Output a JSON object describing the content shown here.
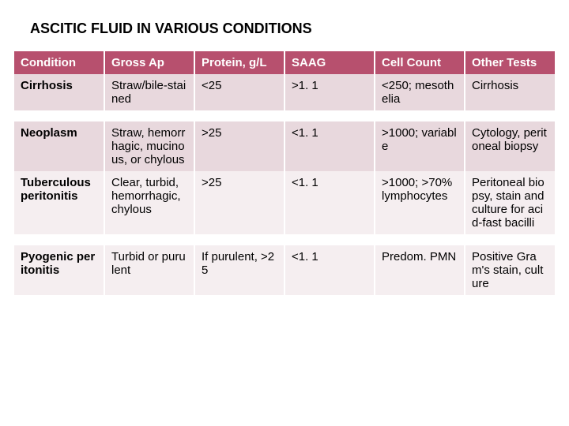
{
  "title": "ASCITIC FLUID IN VARIOUS CONDITIONS",
  "table": {
    "type": "table",
    "header_bg": "#b7506e",
    "header_fg": "#ffffff",
    "alt_row_bg": "#e8d8dd",
    "row_bg": "#f5eef0",
    "border_color": "#ffffff",
    "font_size": 15,
    "columns": [
      "Condition",
      "Gross Ap",
      "Protein, g/L",
      "SAAG",
      "Cell Count",
      "Other Tests"
    ],
    "rows": [
      [
        "Cirrhosis",
        "Straw/bile-stained",
        "<25",
        ">1. 1",
        "<250; mesothelia",
        "Cirrhosis"
      ],
      [
        "Neoplasm",
        "Straw, hemorrhagic, mucinous, or chylous",
        ">25",
        "<1. 1",
        ">1000; variable",
        "Cytology, peritoneal biopsy"
      ],
      [
        "Tuberculous peritonitis",
        "Clear, turbid, hemorrhagic, chylous",
        ">25",
        "<1. 1",
        ">1000; >70% lymphocytes",
        "Peritoneal biopsy, stain and culture for acid-fast bacilli"
      ],
      [
        "Pyogenic peritonitis",
        "Turbid or purulent",
        "If purulent, >25",
        "<1. 1",
        "Predom. PMN",
        "Positive Gram's stain, culture"
      ]
    ]
  }
}
